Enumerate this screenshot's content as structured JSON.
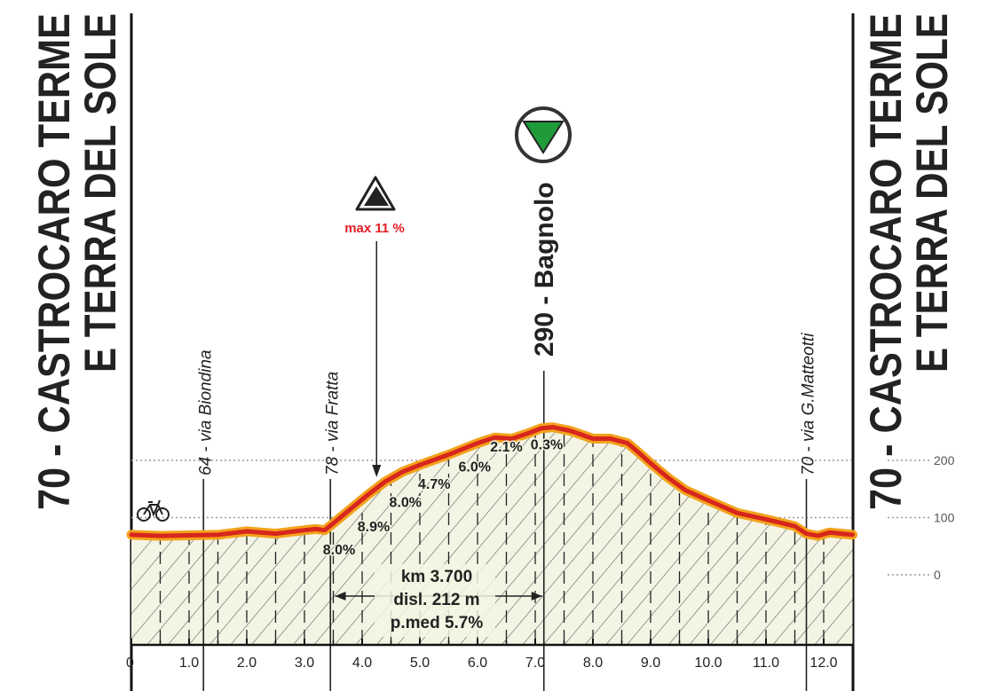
{
  "chart_data": {
    "type": "area",
    "title": "",
    "xlabel": "",
    "ylabel": "",
    "xlim": [
      0,
      12.5
    ],
    "ylim": [
      -100,
      290
    ],
    "x_ticks": [
      "0",
      "1.0",
      "2.0",
      "3.0",
      "4.0",
      "5.0",
      "6.0",
      "7.0",
      "8.0",
      "9.0",
      "10.0",
      "11.0",
      "12.0"
    ],
    "y_ticks": [
      {
        "value": 0,
        "label": "0"
      },
      {
        "value": 100,
        "label": "100"
      },
      {
        "value": 200,
        "label": "200"
      }
    ],
    "grid": "dotted horizontal at 0, 100, 200",
    "colors": {
      "profile_line": "#d7261e",
      "profile_glow": "#f3a21b",
      "fill": "#f4f4e4",
      "hatch": "#3a3a3a",
      "text": "#222222",
      "accent_red": "#e31e24",
      "finish_green": "#1f9b3a"
    },
    "series": [
      {
        "x": [
          0.0,
          0.5,
          1.0,
          1.5,
          2.0,
          2.5,
          3.0,
          3.2,
          3.35,
          3.5,
          3.8,
          4.1,
          4.4,
          4.7,
          5.0,
          5.5,
          6.0,
          6.3,
          6.6,
          6.9,
          7.1,
          7.3,
          7.6,
          8.0,
          8.3,
          8.6,
          8.8,
          9.0,
          9.3,
          9.6,
          10.0,
          10.5,
          11.0,
          11.5,
          11.7,
          11.9,
          12.1,
          12.3,
          12.5
        ],
        "y": [
          70,
          68,
          69,
          70,
          76,
          72,
          78,
          80,
          78,
          90,
          115,
          140,
          163,
          180,
          192,
          210,
          230,
          240,
          238,
          248,
          256,
          258,
          252,
          238,
          238,
          230,
          213,
          195,
          170,
          148,
          130,
          108,
          97,
          85,
          72,
          68,
          74,
          72,
          70
        ]
      }
    ],
    "start_label": "70 - CASTROCARO TERME E TERRA DEL SOLE",
    "finish_label": "70 - CASTROCARO TERME E TERRA DEL SOLE",
    "waypoints": [
      {
        "km": 1.25,
        "label": "64 - via Biondina"
      },
      {
        "km": 3.45,
        "label": "78 - via Fratta"
      },
      {
        "km": 7.15,
        "label": "290 - Bagnolo"
      },
      {
        "km": 11.7,
        "label": "70 - via G.Matteotti"
      }
    ],
    "climb_marker": {
      "label": "max 11 %",
      "km": 4.25
    },
    "gradients": [
      {
        "label": "8.0%",
        "km": 3.6,
        "y": 45
      },
      {
        "label": "8.9%",
        "km": 4.2,
        "y": 85
      },
      {
        "label": "8.0%",
        "km": 4.75,
        "y": 128
      },
      {
        "label": "4.7%",
        "km": 5.25,
        "y": 160
      },
      {
        "label": "6.0%",
        "km": 5.95,
        "y": 190
      },
      {
        "label": "2.1%",
        "km": 6.5,
        "y": 225
      },
      {
        "label": "0.3%",
        "km": 7.2,
        "y": 229
      }
    ],
    "climb_stats": [
      "km 3.700",
      "disl. 212 m",
      "p.med 5.7%"
    ],
    "climb_span_km": [
      3.5,
      7.15
    ]
  }
}
